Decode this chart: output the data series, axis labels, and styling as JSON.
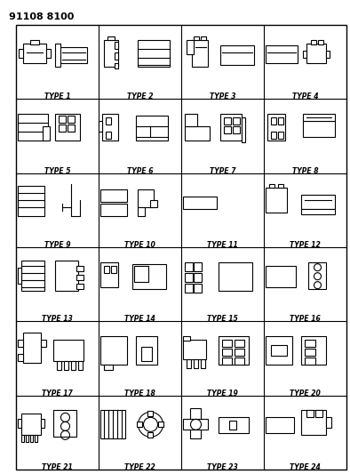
{
  "title": "91108 8100",
  "background_color": "#ffffff",
  "grid_color": "#000000",
  "text_color": "#000000",
  "rows": 6,
  "cols": 4,
  "types": [
    "TYPE 1",
    "TYPE 2",
    "TYPE 3",
    "TYPE 4",
    "TYPE 5",
    "TYPE 6",
    "TYPE 7",
    "TYPE 8",
    "TYPE 9",
    "TYPE 10",
    "TYPE 11",
    "TYPE 12",
    "TYPE 13",
    "TYPE 14",
    "TYPE 15",
    "TYPE 16",
    "TYPE 17",
    "TYPE 18",
    "TYPE 19",
    "TYPE 20",
    "TYPE 21",
    "TYPE 22",
    "TYPE 23",
    "TYPE 24"
  ],
  "fig_width": 3.94,
  "fig_height": 5.33,
  "dpi": 100
}
